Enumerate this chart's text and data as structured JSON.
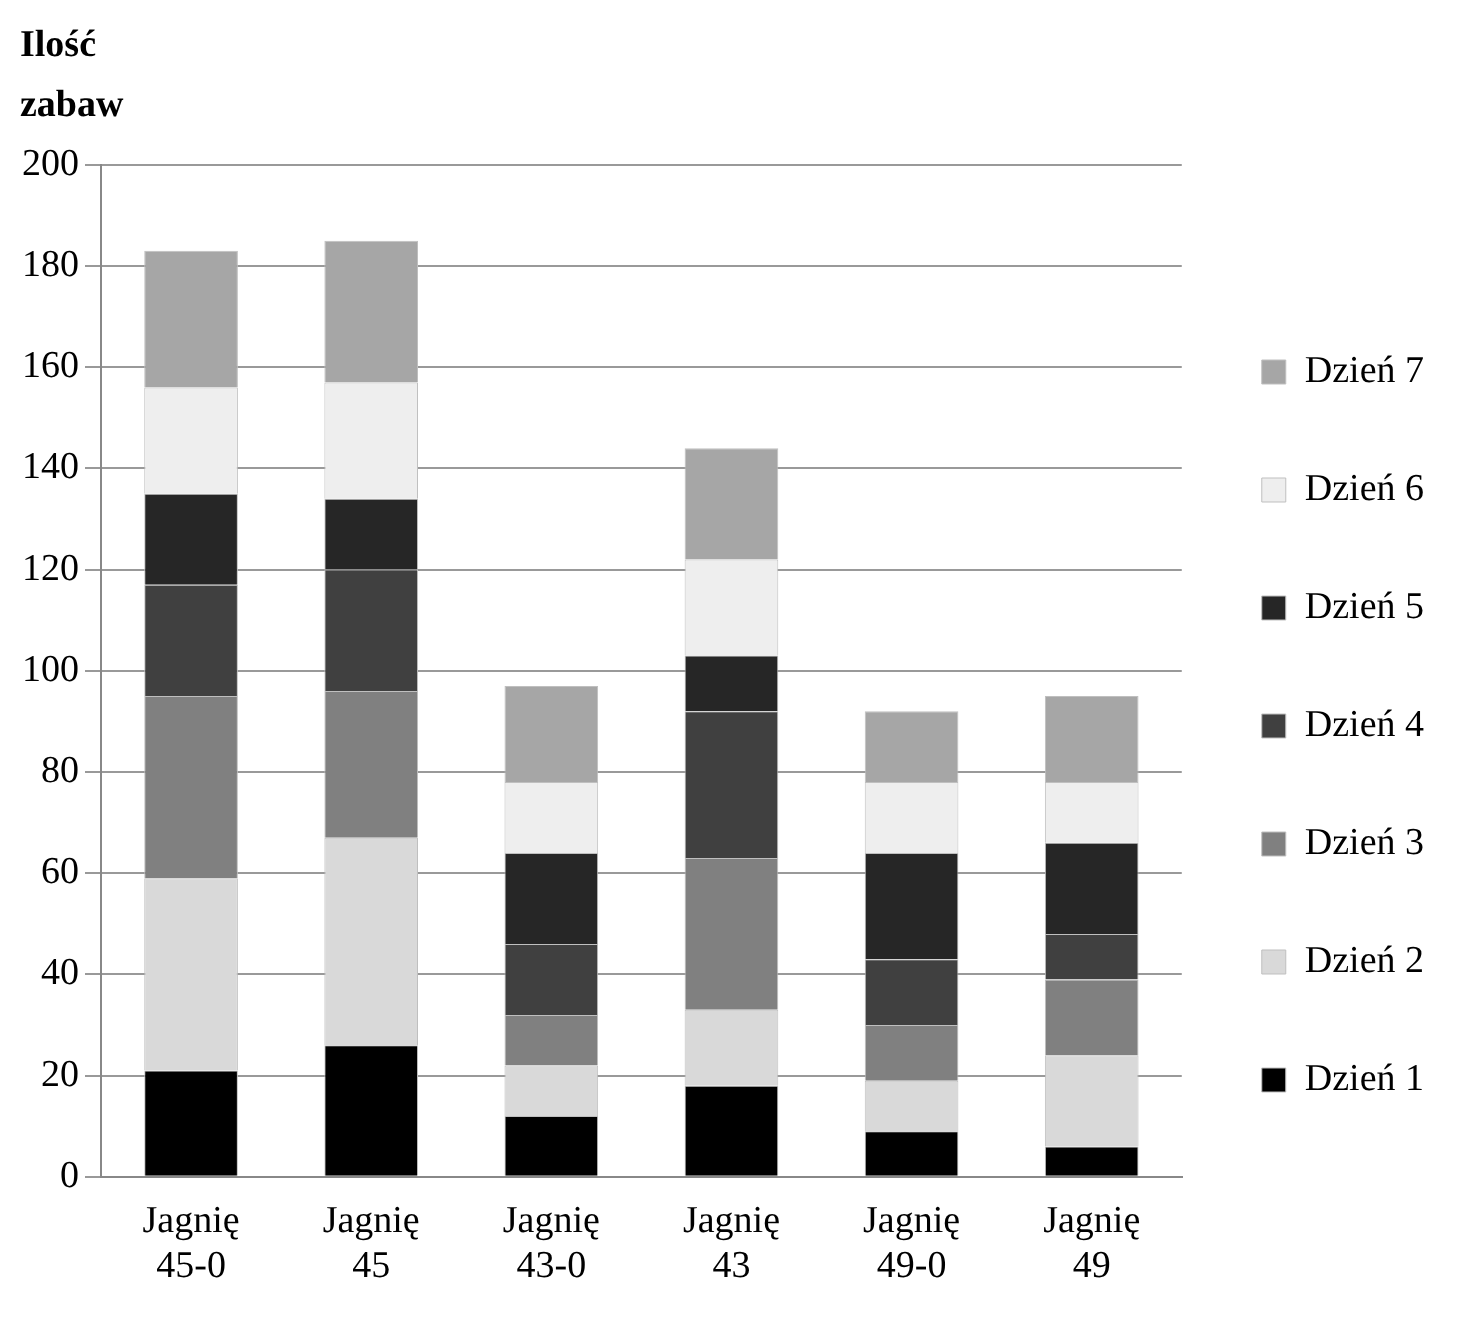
{
  "chart_data": {
    "type": "bar",
    "stacked": true,
    "ylabel": "Ilość zabaw",
    "categories": [
      "Jagnię 45-0",
      "Jagnię 45",
      "Jagnię 43-0",
      "Jagnię 43",
      "Jagnię 49-0",
      "Jagnię 49"
    ],
    "series": [
      {
        "name": "Dzień 1",
        "color": "#000000",
        "values": [
          21,
          26,
          12,
          18,
          9,
          6
        ]
      },
      {
        "name": "Dzień 2",
        "color": "#d9d9d9",
        "values": [
          38,
          41,
          10,
          15,
          10,
          18
        ]
      },
      {
        "name": "Dzień 3",
        "color": "#808080",
        "values": [
          36,
          29,
          10,
          30,
          11,
          15
        ]
      },
      {
        "name": "Dzień 4",
        "color": "#404040",
        "values": [
          22,
          24,
          14,
          29,
          13,
          9
        ]
      },
      {
        "name": "Dzień 5",
        "color": "#262626",
        "values": [
          18,
          14,
          18,
          11,
          21,
          18
        ]
      },
      {
        "name": "Dzień 6",
        "color": "#eeeeee",
        "values": [
          21,
          23,
          14,
          19,
          14,
          12
        ]
      },
      {
        "name": "Dzień 7",
        "color": "#a6a6a6",
        "values": [
          27,
          28,
          19,
          22,
          14,
          17
        ]
      }
    ],
    "ylim": [
      0,
      200
    ],
    "yticks": [
      0,
      20,
      40,
      60,
      80,
      100,
      120,
      140,
      160,
      180,
      200
    ],
    "grid": "y",
    "legend": "right"
  }
}
